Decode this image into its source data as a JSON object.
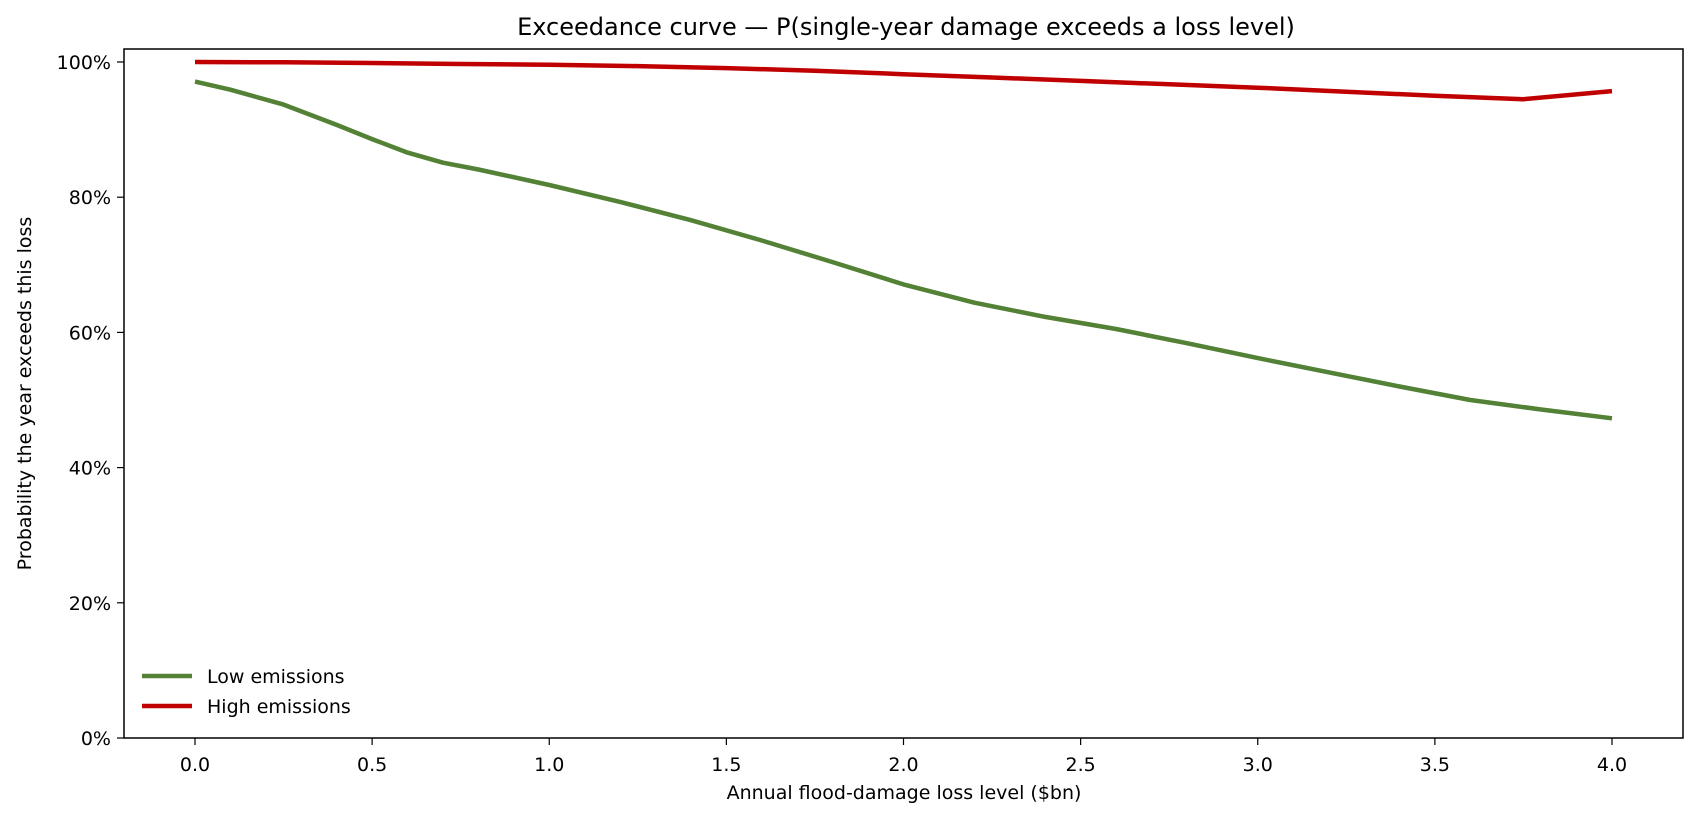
{
  "chart_data": {
    "type": "line",
    "title": "Exceedance curve — P(single-year damage exceeds a loss level)",
    "xlabel": "Annual flood-damage loss level  ($bn)",
    "ylabel": "Probability the year exceeds this loss",
    "xlim": [
      -0.2,
      4.2
    ],
    "ylim": [
      0,
      102
    ],
    "x_ticks": [
      0.0,
      0.5,
      1.0,
      1.5,
      2.0,
      2.5,
      3.0,
      3.5,
      4.0
    ],
    "x_tick_labels": [
      "0.0",
      "0.5",
      "1.0",
      "1.5",
      "2.0",
      "2.5",
      "3.0",
      "3.5",
      "4.0"
    ],
    "y_ticks": [
      0,
      20,
      40,
      60,
      80,
      100
    ],
    "y_tick_labels": [
      "0%",
      "20%",
      "40%",
      "60%",
      "80%",
      "100%"
    ],
    "grid": false,
    "legend_position": "bottom-left",
    "series": [
      {
        "name": "Low emissions",
        "color": "#538135",
        "x": [
          0.0,
          0.1,
          0.25,
          0.4,
          0.5,
          0.6,
          0.7,
          0.8,
          1.0,
          1.2,
          1.4,
          1.6,
          1.8,
          2.0,
          2.2,
          2.4,
          2.6,
          2.8,
          3.0,
          3.2,
          3.4,
          3.6,
          3.8,
          4.0
        ],
        "y": [
          97.1,
          95.9,
          93.7,
          90.7,
          88.6,
          86.6,
          85.1,
          84.1,
          81.8,
          79.3,
          76.6,
          73.6,
          70.4,
          67.1,
          64.4,
          62.3,
          60.5,
          58.4,
          56.2,
          54.1,
          52.0,
          50.0,
          48.6,
          47.3
        ]
      },
      {
        "name": "High emissions",
        "color": "#c00000",
        "x": [
          0.0,
          0.25,
          0.5,
          0.75,
          1.0,
          1.25,
          1.5,
          1.75,
          2.0,
          2.25,
          2.5,
          2.75,
          3.0,
          3.25,
          3.5,
          3.75,
          4.0
        ],
        "y": [
          100.0,
          99.95,
          99.85,
          99.7,
          99.6,
          99.4,
          99.1,
          98.7,
          98.2,
          97.7,
          97.2,
          96.7,
          96.2,
          95.6,
          95.0,
          94.5,
          95.7
        ]
      }
    ]
  }
}
